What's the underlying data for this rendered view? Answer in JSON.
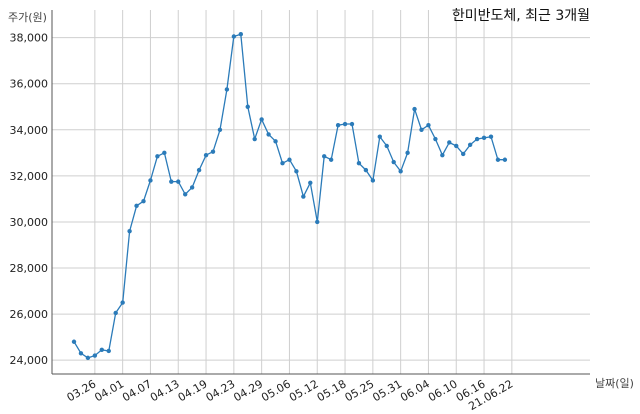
{
  "chart_data": {
    "type": "line",
    "title": "한미반도체, 최근 3개월",
    "ylabel": "주가(원)",
    "xlabel": "날짜(일)",
    "ylim": [
      23400,
      39200
    ],
    "grid": true,
    "legend": "none",
    "line_color": "#2b7bb9",
    "yticks": [
      24000,
      26000,
      28000,
      30000,
      32000,
      34000,
      36000,
      38000
    ],
    "ytick_labels": [
      "24,000",
      "26,000",
      "28,000",
      "30,000",
      "32,000",
      "34,000",
      "36,000",
      "38,000"
    ],
    "xticks": [
      {
        "label": "03.26",
        "index": 3
      },
      {
        "label": "04.01",
        "index": 7
      },
      {
        "label": "04.07",
        "index": 11
      },
      {
        "label": "04.13",
        "index": 15
      },
      {
        "label": "04.19",
        "index": 19
      },
      {
        "label": "04.23",
        "index": 23
      },
      {
        "label": "04.29",
        "index": 27
      },
      {
        "label": "05.06",
        "index": 31
      },
      {
        "label": "05.12",
        "index": 35
      },
      {
        "label": "05.18",
        "index": 39
      },
      {
        "label": "05.25",
        "index": 43
      },
      {
        "label": "05.31",
        "index": 47
      },
      {
        "label": "06.04",
        "index": 51
      },
      {
        "label": "06.10",
        "index": 55
      },
      {
        "label": "06.16",
        "index": 59
      },
      {
        "label": "21.06.22",
        "index": 63
      }
    ],
    "series": [
      {
        "values": [
          24800,
          24300,
          24100,
          24200,
          24450,
          24400,
          26050,
          26500,
          29600,
          30700,
          30900,
          31800,
          32850,
          33000,
          31750,
          31750,
          31200,
          31500,
          32250,
          32900,
          33050,
          34000,
          35750,
          38050,
          38150,
          35000,
          33600,
          34450,
          33800,
          33500,
          32550,
          32700,
          32200,
          31100,
          31700,
          30000,
          32850,
          32700,
          34200,
          34250,
          34250,
          32550,
          32250,
          31800,
          33700,
          33300,
          32600,
          32200,
          33000,
          34900,
          34000,
          34200,
          33600,
          32900,
          33450,
          33300,
          32950,
          33350,
          33600,
          33650,
          33700,
          32700,
          32700
        ]
      }
    ]
  }
}
